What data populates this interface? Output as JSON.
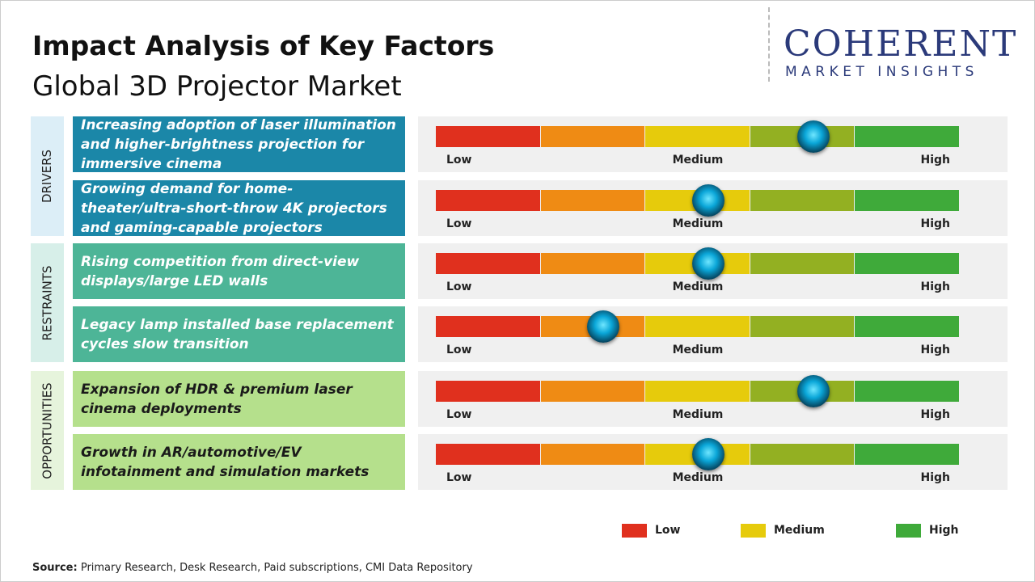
{
  "header": {
    "title": "Impact Analysis of Key Factors",
    "subtitle": "Global 3D Projector Market"
  },
  "logo": {
    "name": "COHERENT",
    "tagline": "MARKET INSIGHTS"
  },
  "scale_labels": [
    "Low",
    "Medium",
    "High"
  ],
  "impact_scale": [
    0,
    5
  ],
  "scale_colors": [
    "#e0301e",
    "#ef8b14",
    "#e6cb0c",
    "#93b022",
    "#3faa3a"
  ],
  "groups": [
    {
      "name": "DRIVERS",
      "color": "#1b87a8",
      "light": "#dceef7",
      "text_color": "#ffffff",
      "factors": [
        {
          "text": "Increasing adoption of laser illumination and higher-brightness projection for immersive cinema",
          "impact": 3.6
        },
        {
          "text": "Growing demand for home-theater/ultra-short-throw 4K projectors and gaming-capable projectors",
          "impact": 2.6
        }
      ]
    },
    {
      "name": "RESTRAINTS",
      "color": "#4db597",
      "light": "#d7efe9",
      "text_color": "#ffffff",
      "factors": [
        {
          "text": "Rising competition from direct-view displays/large LED walls",
          "impact": 2.6
        },
        {
          "text": "Legacy lamp installed base replacement cycles slow transition",
          "impact": 1.6
        }
      ]
    },
    {
      "name": "OPPORTUNITIES",
      "color": "#b5e08c",
      "light": "#e6f4dc",
      "text_color": "#1a1a1a",
      "factors": [
        {
          "text": "Expansion of HDR & premium laser cinema deployments",
          "impact": 3.6
        },
        {
          "text": "Growth in AR/automotive/EV infotainment and simulation markets",
          "impact": 2.6
        }
      ]
    }
  ],
  "legend": [
    {
      "label": "Low",
      "color": "#e0301e"
    },
    {
      "label": "Medium",
      "color": "#e6cb0c"
    },
    {
      "label": "High",
      "color": "#3faa3a"
    }
  ],
  "source": {
    "label": "Source:",
    "text": "Primary Research, Desk Research, Paid subscriptions, CMI Data Repository"
  }
}
